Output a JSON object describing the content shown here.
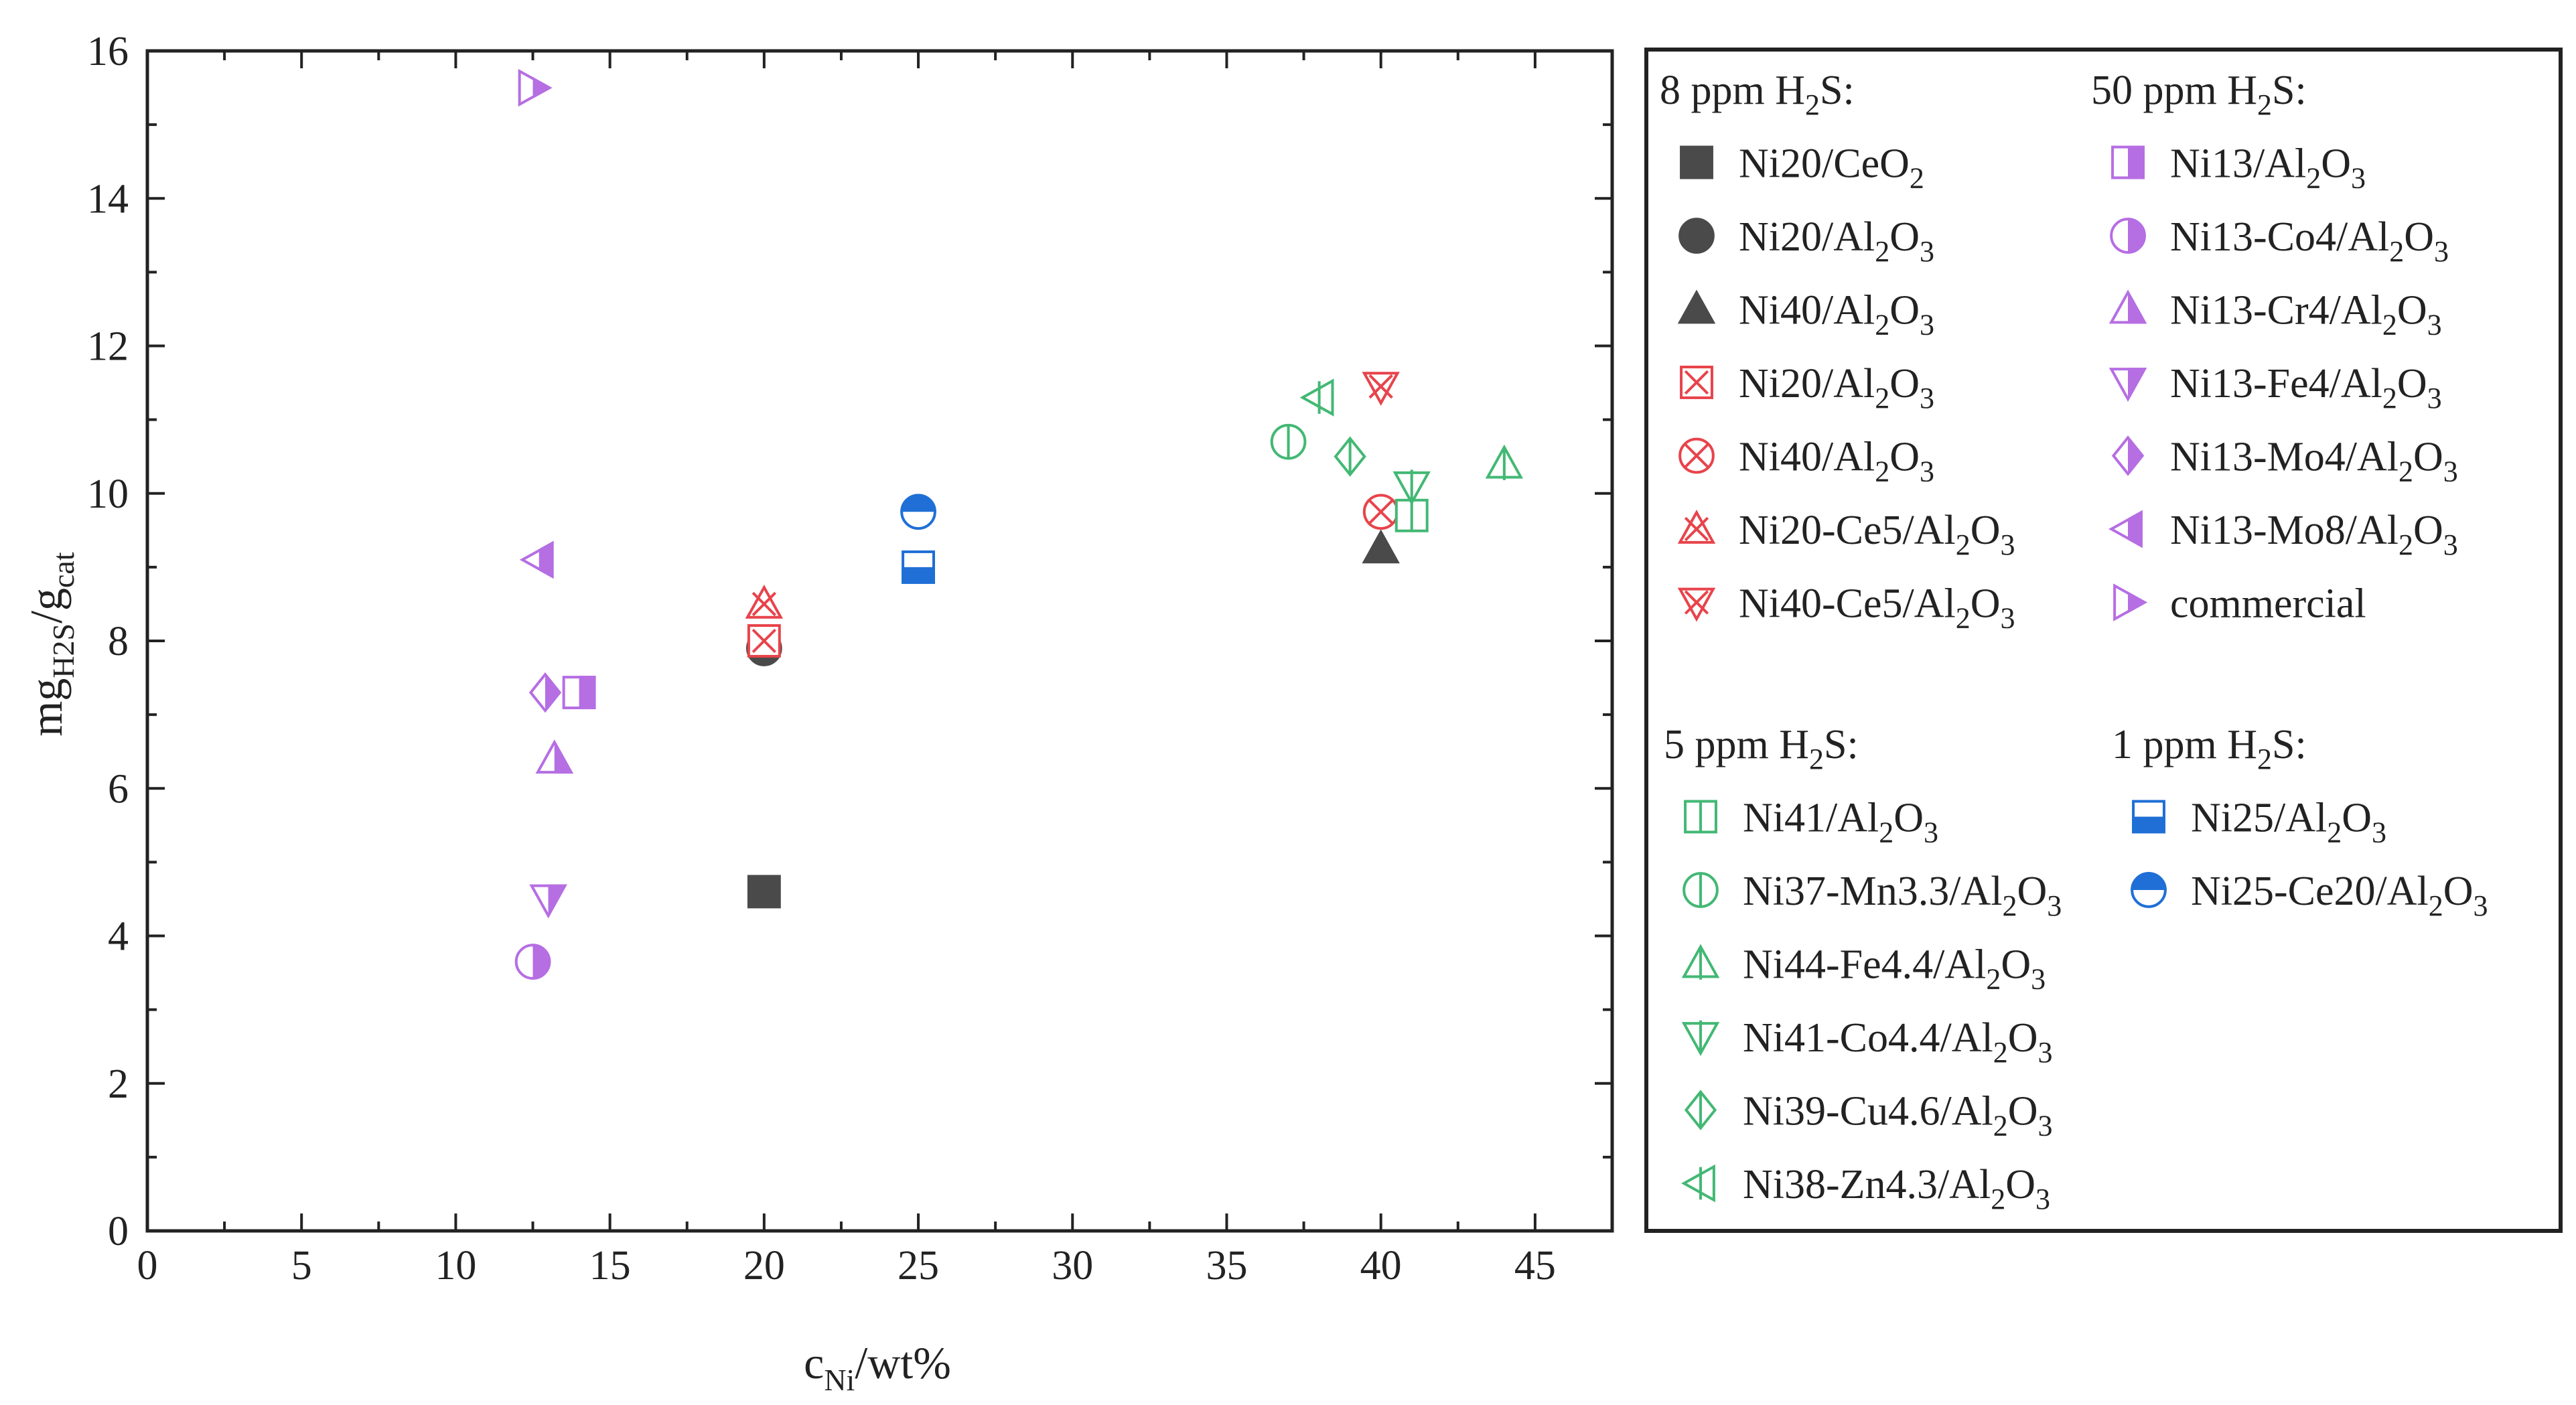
{
  "colors": {
    "dark": "#4a4a4a",
    "red": "#e8434b",
    "green": "#43b874",
    "purple": "#b66ee3",
    "blue": "#1f6fd6",
    "axis": "#222222"
  },
  "chart_data": {
    "type": "scatter",
    "xlabel": {
      "base": "c",
      "sub": "Ni",
      "rest": "/wt%"
    },
    "ylabel": {
      "base": "mg",
      "sub1": "H2S",
      "mid": "/g",
      "sub2": "cat"
    },
    "xlim": [
      0,
      47.5
    ],
    "ylim": [
      0,
      16
    ],
    "x_ticks": [
      0,
      5,
      10,
      15,
      20,
      25,
      30,
      35,
      40,
      45
    ],
    "y_ticks": [
      0,
      2,
      4,
      6,
      8,
      10,
      12,
      14,
      16
    ],
    "groups": [
      {
        "title": {
          "prefix": "8 ppm H",
          "sub": "2",
          "suffix": "S:"
        },
        "color": "dark",
        "series": [
          {
            "marker": "square",
            "fill": "full",
            "color": "dark",
            "label": {
              "a": "Ni20/CeO",
              "s1": "2",
              "b": "",
              "s2": ""
            },
            "x": 20,
            "y": 4.6
          },
          {
            "marker": "circle",
            "fill": "full",
            "color": "dark",
            "label": {
              "a": "Ni20/Al",
              "s1": "2",
              "b": "O",
              "s2": "3"
            },
            "x": 20,
            "y": 7.9
          },
          {
            "marker": "triangle-up",
            "fill": "full",
            "color": "dark",
            "label": {
              "a": "Ni40/Al",
              "s1": "2",
              "b": "O",
              "s2": "3"
            },
            "x": 40,
            "y": 9.25
          }
        ]
      },
      {
        "title": {
          "prefix": "",
          "sub": "",
          "suffix": ""
        },
        "color": "red",
        "series": [
          {
            "marker": "square-x",
            "fill": "none",
            "color": "red",
            "label": {
              "a": "Ni20/Al",
              "s1": "2",
              "b": "O",
              "s2": "3"
            },
            "x": 20,
            "y": 8.0
          },
          {
            "marker": "circle-x",
            "fill": "none",
            "color": "red",
            "label": {
              "a": "Ni40/Al",
              "s1": "2",
              "b": "O",
              "s2": "3"
            },
            "x": 40,
            "y": 9.75
          },
          {
            "marker": "triangle-up-x",
            "fill": "none",
            "color": "red",
            "label": {
              "a": "Ni20-Ce5/Al",
              "s1": "2",
              "b": "O",
              "s2": "3"
            },
            "x": 20,
            "y": 8.5
          },
          {
            "marker": "triangle-down-x",
            "fill": "none",
            "color": "red",
            "label": {
              "a": "Ni40-Ce5/Al",
              "s1": "2",
              "b": "O",
              "s2": "3"
            },
            "x": 40,
            "y": 11.45
          }
        ]
      },
      {
        "title": {
          "prefix": "50 ppm H",
          "sub": "2",
          "suffix": "S:"
        },
        "color": "purple",
        "series": [
          {
            "marker": "square",
            "fill": "right",
            "color": "purple",
            "label": {
              "a": "Ni13/Al",
              "s1": "2",
              "b": "O",
              "s2": "3"
            },
            "x": 14,
            "y": 7.3
          },
          {
            "marker": "circle",
            "fill": "right",
            "color": "purple",
            "label": {
              "a": "Ni13-Co4/Al",
              "s1": "2",
              "b": "O",
              "s2": "3"
            },
            "x": 12.5,
            "y": 3.65
          },
          {
            "marker": "triangle-up",
            "fill": "right",
            "color": "purple",
            "label": {
              "a": "Ni13-Cr4/Al",
              "s1": "2",
              "b": "O",
              "s2": "3"
            },
            "x": 13.2,
            "y": 6.4
          },
          {
            "marker": "triangle-down",
            "fill": "right",
            "color": "purple",
            "label": {
              "a": "Ni13-Fe4/Al",
              "s1": "2",
              "b": "O",
              "s2": "3"
            },
            "x": 13,
            "y": 4.5
          },
          {
            "marker": "diamond",
            "fill": "right",
            "color": "purple",
            "label": {
              "a": "Ni13-Mo4/Al",
              "s1": "2",
              "b": "O",
              "s2": "3"
            },
            "x": 12.9,
            "y": 7.3
          },
          {
            "marker": "triangle-left",
            "fill": "right",
            "color": "purple",
            "label": {
              "a": "Ni13-Mo8/Al",
              "s1": "2",
              "b": "O",
              "s2": "3"
            },
            "x": 12.7,
            "y": 9.1
          },
          {
            "marker": "triangle-right",
            "fill": "right",
            "color": "purple",
            "label": {
              "a": "commercial",
              "s1": "",
              "b": "",
              "s2": ""
            },
            "x": 12.5,
            "y": 15.5
          }
        ]
      },
      {
        "title": {
          "prefix": "5 ppm H",
          "sub": "2",
          "suffix": "S:"
        },
        "color": "green",
        "series": [
          {
            "marker": "square",
            "fill": "vline",
            "color": "green",
            "label": {
              "a": "Ni41/Al",
              "s1": "2",
              "b": "O",
              "s2": "3"
            },
            "x": 41,
            "y": 9.7
          },
          {
            "marker": "circle",
            "fill": "vline",
            "color": "green",
            "label": {
              "a": "Ni37-Mn3.3/Al",
              "s1": "2",
              "b": "O",
              "s2": "3"
            },
            "x": 37,
            "y": 10.7
          },
          {
            "marker": "triangle-up",
            "fill": "vline",
            "color": "green",
            "label": {
              "a": "Ni44-Fe4.4/Al",
              "s1": "2",
              "b": "O",
              "s2": "3"
            },
            "x": 44,
            "y": 10.4
          },
          {
            "marker": "triangle-down",
            "fill": "vline",
            "color": "green",
            "label": {
              "a": "Ni41-Co4.4/Al",
              "s1": "2",
              "b": "O",
              "s2": "3"
            },
            "x": 41,
            "y": 10.1
          },
          {
            "marker": "diamond",
            "fill": "vline",
            "color": "green",
            "label": {
              "a": "Ni39-Cu4.6/Al",
              "s1": "2",
              "b": "O",
              "s2": "3"
            },
            "x": 39,
            "y": 10.5
          },
          {
            "marker": "triangle-left",
            "fill": "vline",
            "color": "green",
            "label": {
              "a": "Ni38-Zn4.3/Al",
              "s1": "2",
              "b": "O",
              "s2": "3"
            },
            "x": 38,
            "y": 11.3
          }
        ]
      },
      {
        "title": {
          "prefix": "1 ppm H",
          "sub": "2",
          "suffix": "S:"
        },
        "color": "blue",
        "series": [
          {
            "marker": "square",
            "fill": "bottom",
            "color": "blue",
            "label": {
              "a": "Ni25/Al",
              "s1": "2",
              "b": "O",
              "s2": "3"
            },
            "x": 25,
            "y": 9.0
          },
          {
            "marker": "circle",
            "fill": "top",
            "color": "blue",
            "label": {
              "a": "Ni25-Ce20/Al",
              "s1": "2",
              "b": "O",
              "s2": "3"
            },
            "x": 25,
            "y": 9.75
          }
        ]
      }
    ]
  }
}
